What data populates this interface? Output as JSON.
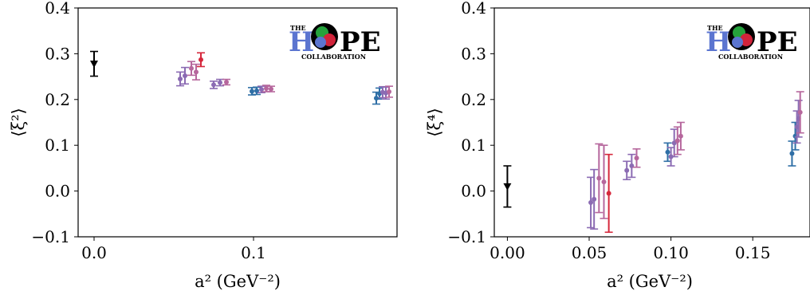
{
  "colors": {
    "black": "#000000",
    "blue": "#2f6fa6",
    "purple": "#8b6bb3",
    "pink": "#b6679d",
    "red": "#d6283c",
    "logo_blue": "#5b75d0",
    "logo_green": "#25a23c",
    "logo_red": "#d1233a"
  },
  "logo": {
    "the": "THE",
    "h": "H",
    "pe": "PE",
    "collab": "COLLABORATION"
  },
  "chart_data": [
    {
      "type": "scatter",
      "title": "",
      "xlabel": "a² (GeV⁻²)",
      "ylabel": "⟨ξ²⟩",
      "xlim": [
        -0.01,
        0.19
      ],
      "ylim": [
        -0.1,
        0.4
      ],
      "xticks": [
        0.0,
        0.1
      ],
      "xtick_labels": [
        "0.0",
        "0.1"
      ],
      "yticks": [
        -0.1,
        0.0,
        0.1,
        0.2,
        0.3,
        0.4
      ],
      "ytick_labels": [
        "−0.1",
        "0.0",
        "0.1",
        "0.2",
        "0.3",
        "0.4"
      ],
      "grid": false,
      "points": [
        {
          "x": 0.0,
          "y": 0.278,
          "err": 0.027,
          "color": "black",
          "marker": "triangle-down"
        },
        {
          "x": 0.054,
          "y": 0.245,
          "err": 0.015,
          "color": "purple"
        },
        {
          "x": 0.057,
          "y": 0.252,
          "err": 0.018,
          "color": "purple"
        },
        {
          "x": 0.061,
          "y": 0.268,
          "err": 0.015,
          "color": "pink"
        },
        {
          "x": 0.064,
          "y": 0.26,
          "err": 0.017,
          "color": "pink"
        },
        {
          "x": 0.067,
          "y": 0.287,
          "err": 0.015,
          "color": "red"
        },
        {
          "x": 0.075,
          "y": 0.232,
          "err": 0.008,
          "color": "purple"
        },
        {
          "x": 0.079,
          "y": 0.237,
          "err": 0.007,
          "color": "purple"
        },
        {
          "x": 0.083,
          "y": 0.238,
          "err": 0.006,
          "color": "pink"
        },
        {
          "x": 0.099,
          "y": 0.218,
          "err": 0.008,
          "color": "blue"
        },
        {
          "x": 0.102,
          "y": 0.219,
          "err": 0.008,
          "color": "blue"
        },
        {
          "x": 0.105,
          "y": 0.222,
          "err": 0.007,
          "color": "purple"
        },
        {
          "x": 0.108,
          "y": 0.224,
          "err": 0.007,
          "color": "pink"
        },
        {
          "x": 0.111,
          "y": 0.223,
          "err": 0.006,
          "color": "pink"
        },
        {
          "x": 0.177,
          "y": 0.203,
          "err": 0.013,
          "color": "blue"
        },
        {
          "x": 0.179,
          "y": 0.213,
          "err": 0.012,
          "color": "blue"
        },
        {
          "x": 0.181,
          "y": 0.216,
          "err": 0.012,
          "color": "purple"
        },
        {
          "x": 0.183,
          "y": 0.214,
          "err": 0.013,
          "color": "purple"
        },
        {
          "x": 0.185,
          "y": 0.217,
          "err": 0.012,
          "color": "pink"
        }
      ]
    },
    {
      "type": "scatter",
      "title": "",
      "xlabel": "a² (GeV⁻²)",
      "ylabel": "⟨ξ⁴⟩",
      "xlim": [
        -0.008,
        0.185
      ],
      "ylim": [
        -0.1,
        0.4
      ],
      "xticks": [
        0.0,
        0.05,
        0.1,
        0.15
      ],
      "xtick_labels": [
        "0.00",
        "0.05",
        "0.10",
        "0.15"
      ],
      "yticks": [
        -0.1,
        0.0,
        0.1,
        0.2,
        0.3,
        0.4
      ],
      "ytick_labels": [
        "−0.1",
        "0.0",
        "0.1",
        "0.2",
        "0.3",
        "0.4"
      ],
      "grid": false,
      "points": [
        {
          "x": 0.0,
          "y": 0.01,
          "err": 0.045,
          "color": "black",
          "marker": "triangle-down"
        },
        {
          "x": 0.051,
          "y": -0.025,
          "err": 0.055,
          "color": "purple"
        },
        {
          "x": 0.053,
          "y": -0.018,
          "err": 0.065,
          "color": "purple"
        },
        {
          "x": 0.056,
          "y": 0.028,
          "err": 0.075,
          "color": "pink"
        },
        {
          "x": 0.059,
          "y": 0.02,
          "err": 0.08,
          "color": "pink"
        },
        {
          "x": 0.062,
          "y": -0.005,
          "err": 0.085,
          "color": "red"
        },
        {
          "x": 0.073,
          "y": 0.045,
          "err": 0.02,
          "color": "purple"
        },
        {
          "x": 0.076,
          "y": 0.055,
          "err": 0.025,
          "color": "purple"
        },
        {
          "x": 0.079,
          "y": 0.072,
          "err": 0.02,
          "color": "pink"
        },
        {
          "x": 0.098,
          "y": 0.085,
          "err": 0.02,
          "color": "blue"
        },
        {
          "x": 0.1,
          "y": 0.075,
          "err": 0.02,
          "color": "purple"
        },
        {
          "x": 0.102,
          "y": 0.105,
          "err": 0.03,
          "color": "purple"
        },
        {
          "x": 0.104,
          "y": 0.11,
          "err": 0.03,
          "color": "pink"
        },
        {
          "x": 0.106,
          "y": 0.12,
          "err": 0.03,
          "color": "pink"
        },
        {
          "x": 0.174,
          "y": 0.082,
          "err": 0.027,
          "color": "blue"
        },
        {
          "x": 0.176,
          "y": 0.12,
          "err": 0.03,
          "color": "blue"
        },
        {
          "x": 0.177,
          "y": 0.14,
          "err": 0.035,
          "color": "purple"
        },
        {
          "x": 0.178,
          "y": 0.158,
          "err": 0.04,
          "color": "purple"
        },
        {
          "x": 0.179,
          "y": 0.172,
          "err": 0.045,
          "color": "pink"
        }
      ]
    }
  ]
}
